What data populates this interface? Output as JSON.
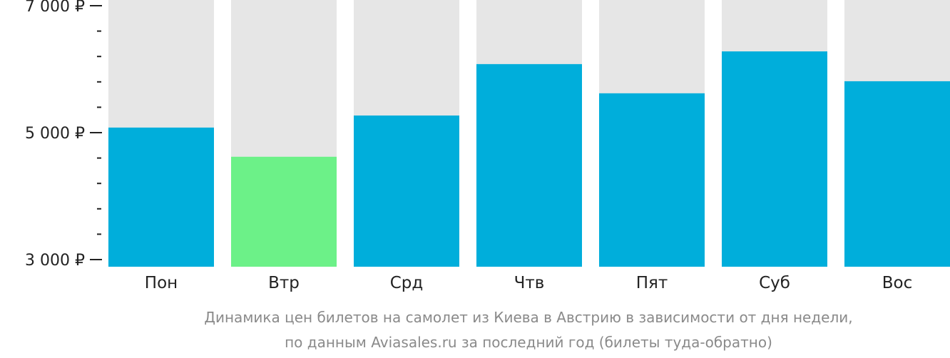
{
  "chart_data": {
    "type": "bar",
    "categories": [
      "Пон",
      "Втр",
      "Срд",
      "Чтв",
      "Пят",
      "Суб",
      "Вос"
    ],
    "values": [
      5080,
      4620,
      5270,
      6080,
      5620,
      6280,
      5810
    ],
    "ylim": [
      3000,
      7000
    ],
    "y_ticks": [
      {
        "value": 3000,
        "label": "3 000 ₽"
      },
      {
        "value": 5000,
        "label": "5 000 ₽"
      },
      {
        "value": 7000,
        "label": "7 000 ₽"
      }
    ],
    "y_minor_step": 400,
    "highlight_index": 1,
    "colors": {
      "bar": "#00aedb",
      "highlight": "#6cf188",
      "track": "#e6e6e6",
      "axis": "#222222",
      "caption": "#8a8a8a"
    }
  },
  "caption": {
    "line1": "Динамика цен билетов на самолет из Киева в Австрию в зависимости от дня недели,",
    "line2": "по данным Aviasales.ru за последний год (билеты туда-обратно)"
  }
}
